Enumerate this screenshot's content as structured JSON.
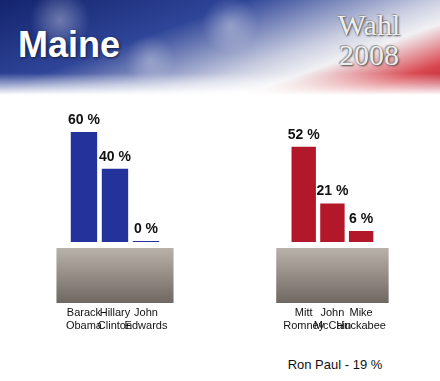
{
  "title": "Maine",
  "logo": "Wahl 2008",
  "chart_data": [
    {
      "type": "bar",
      "categories": [
        "Barack Obama",
        "Hillary Clinton",
        "John Edwards"
      ],
      "values": [
        60,
        40,
        0
      ],
      "value_labels": [
        "60 %",
        "40 %",
        "0 %"
      ],
      "color": "#23339b",
      "ylim": [
        0,
        60
      ],
      "grid": false,
      "data_labels": true,
      "tick_labels": "x"
    },
    {
      "type": "bar",
      "categories": [
        "Mitt Romney",
        "John McCain",
        "Mike Huckabee"
      ],
      "values": [
        52,
        21,
        6
      ],
      "value_labels": [
        "52 %",
        "21 %",
        "6 %"
      ],
      "color": "#b3182a",
      "ylim": [
        0,
        60
      ],
      "grid": false,
      "data_labels": true,
      "tick_labels": "x",
      "annotation": "Ron Paul - 19 %"
    }
  ]
}
